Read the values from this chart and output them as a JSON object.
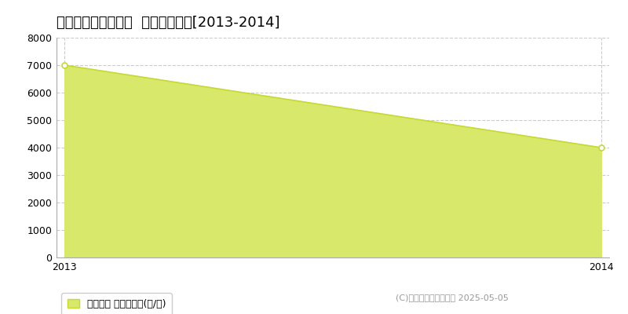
{
  "title": "うるま市与那城西原  林地価格推移[2013-2014]",
  "x_values": [
    2013,
    2014
  ],
  "y_values": [
    7000,
    4000
  ],
  "ylim": [
    0,
    8000
  ],
  "xlim": [
    2013,
    2014
  ],
  "yticks": [
    0,
    1000,
    2000,
    3000,
    4000,
    5000,
    6000,
    7000,
    8000
  ],
  "xticks": [
    2013,
    2014
  ],
  "line_color": "#c8d832",
  "fill_color": "#d8e86a",
  "fill_alpha": 1.0,
  "marker": "o",
  "marker_size": 5,
  "marker_facecolor": "white",
  "grid_color": "#cccccc",
  "grid_style": "--",
  "bg_color": "#ffffff",
  "legend_label": "林地価格 平均坪単価(円/坪)",
  "copyright_text": "(C)土地価格ドットコム 2025-05-05",
  "title_fontsize": 13,
  "tick_fontsize": 9,
  "legend_fontsize": 9,
  "copyright_fontsize": 8
}
